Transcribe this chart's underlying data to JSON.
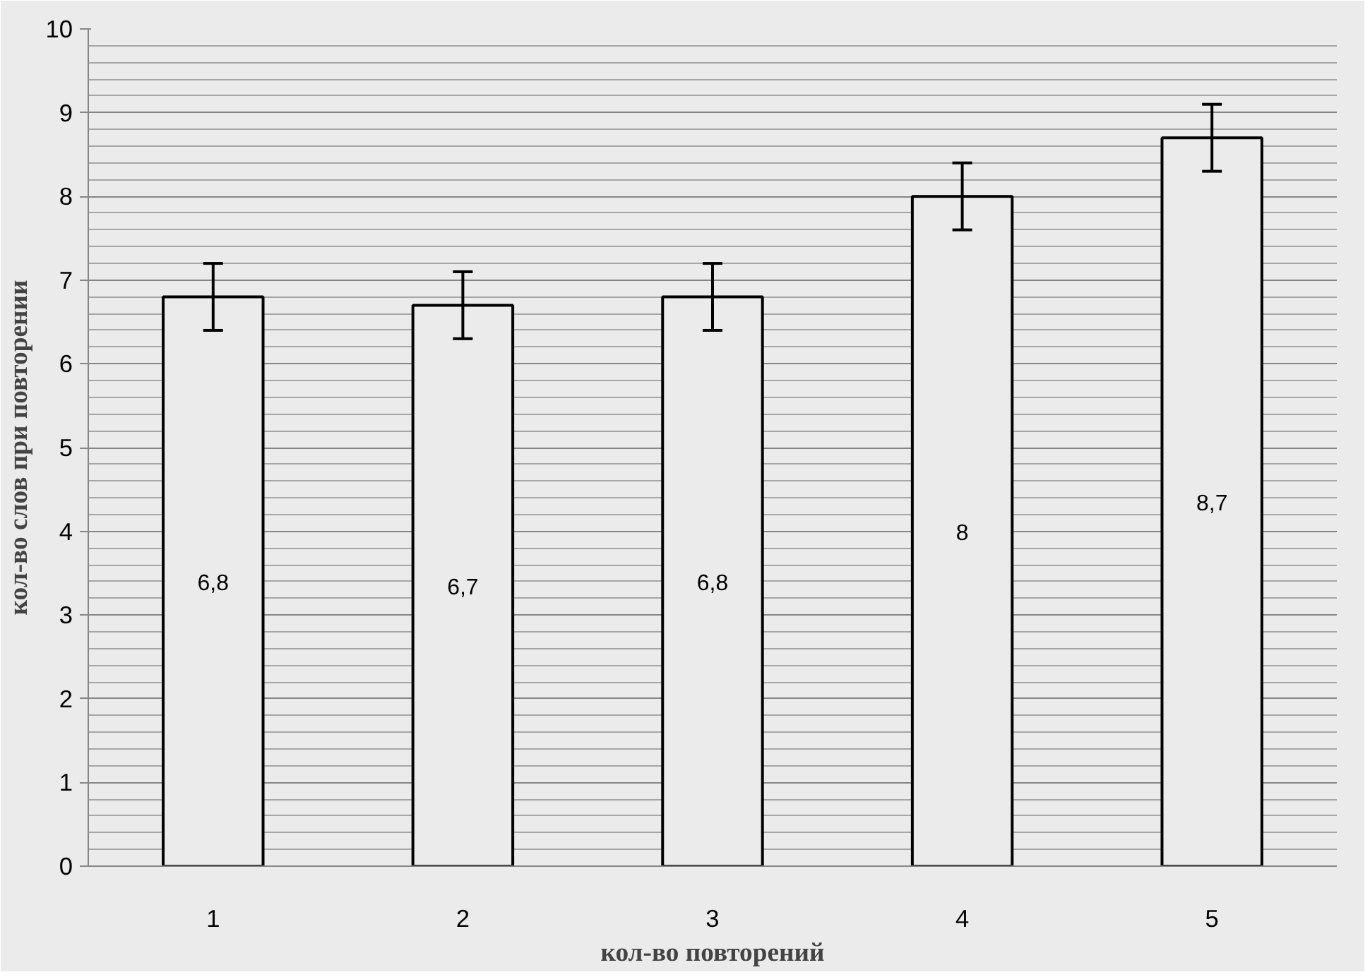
{
  "chart_data": {
    "type": "bar",
    "xlabel": "кол-во повторений",
    "ylabel": "кол-во слов при повторении",
    "categories": [
      "1",
      "2",
      "3",
      "4",
      "5"
    ],
    "values": [
      6.8,
      6.7,
      6.8,
      8,
      8.7
    ],
    "color": "#ebebeb",
    "errors": [
      0.4,
      0.4,
      0.4,
      0.4,
      0.4
    ],
    "value_labels": [
      "6,8",
      "6,7",
      "6,8",
      "8",
      "8,7"
    ],
    "ylim": [
      0,
      10
    ],
    "yticks": [
      0,
      1,
      2,
      3,
      4,
      5,
      6,
      7,
      8,
      9,
      10
    ],
    "grid": "y"
  }
}
